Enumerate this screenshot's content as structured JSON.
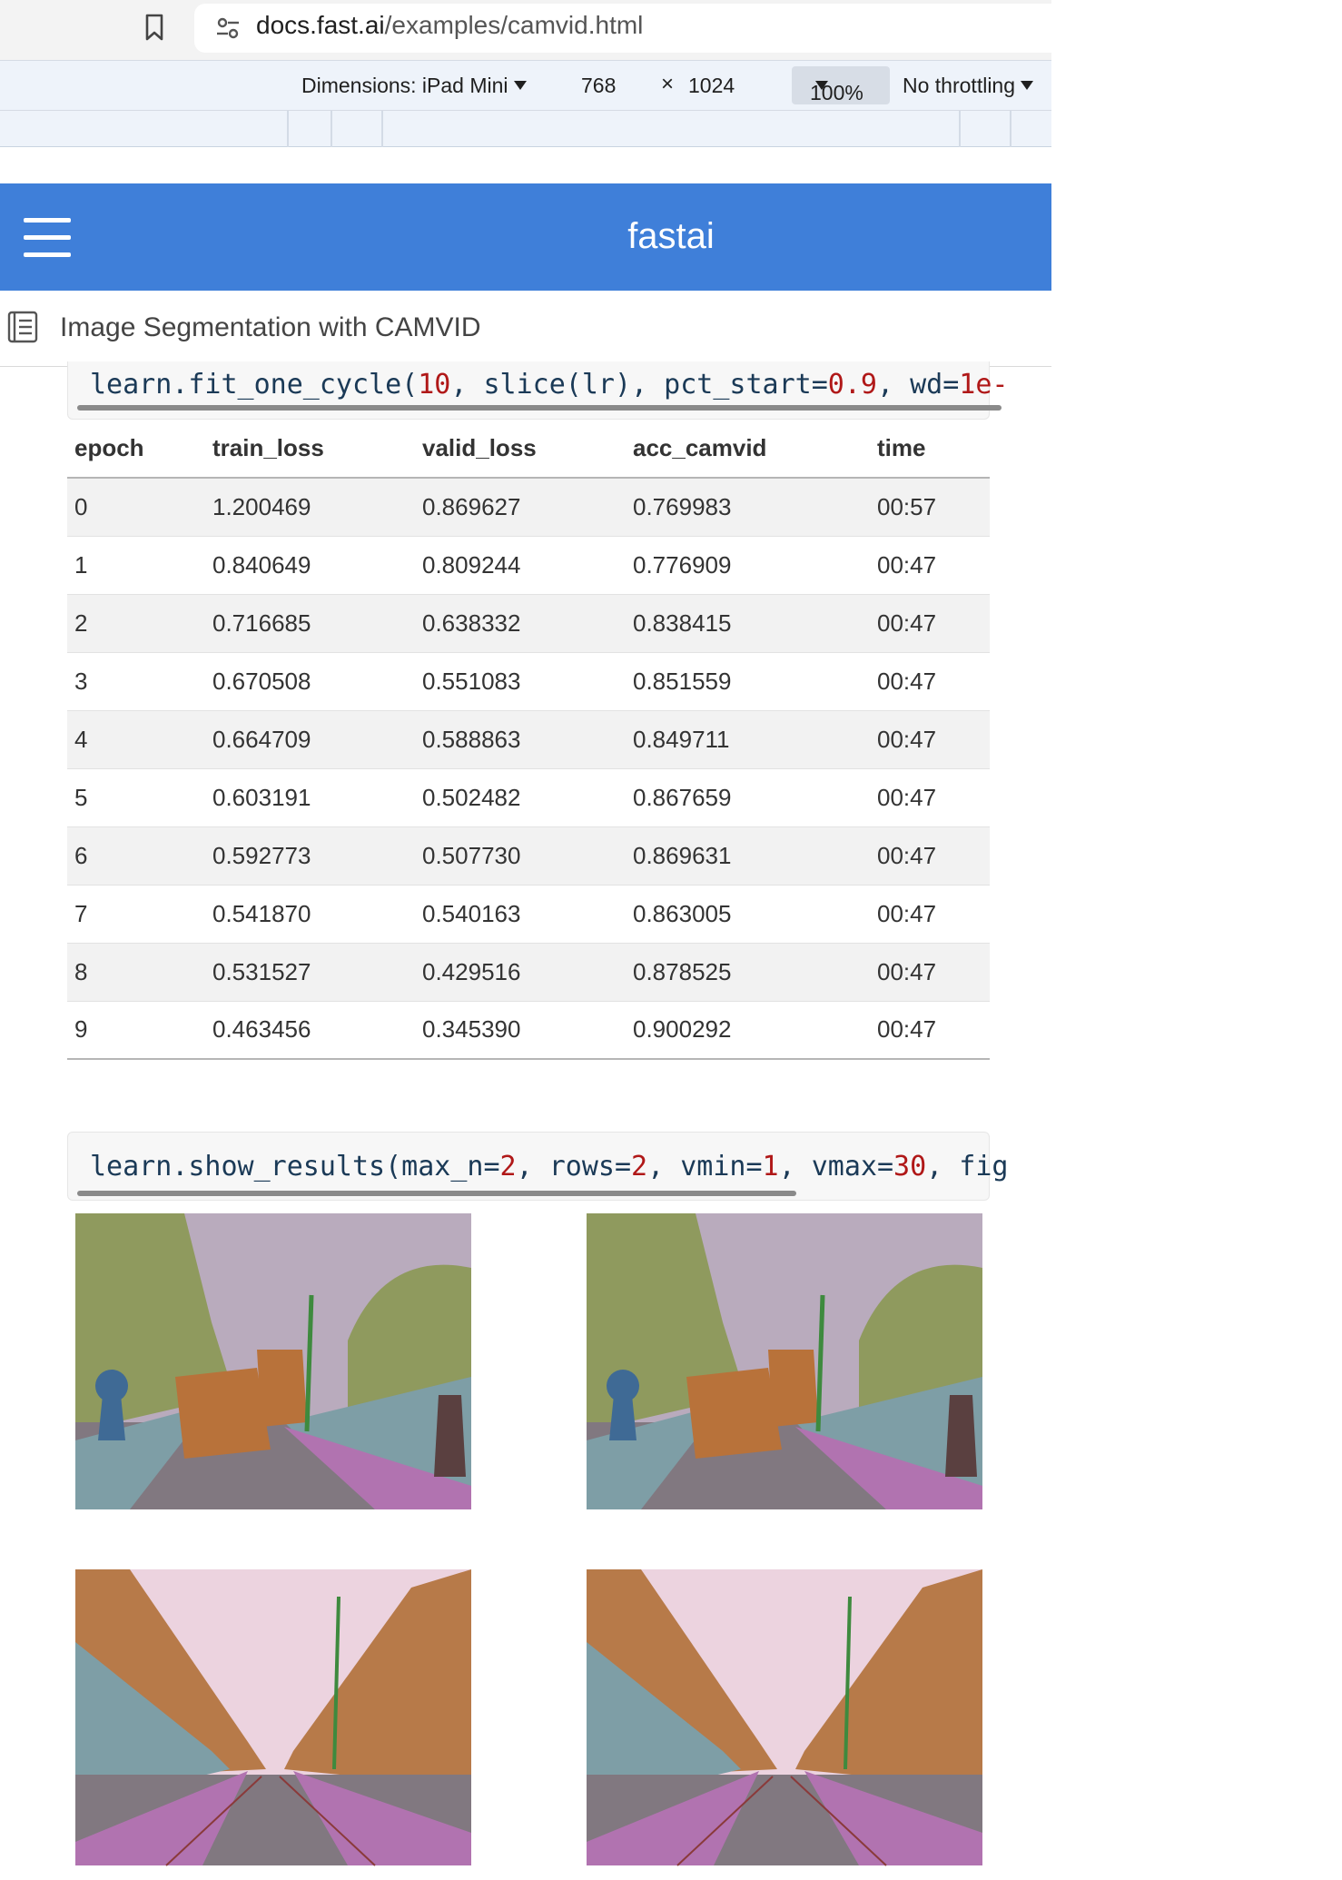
{
  "browser": {
    "url_host": "docs.fast.ai",
    "url_path": "/examples/camvid.html",
    "devtools": {
      "dimensions_label": "Dimensions: iPad Mini",
      "width": "768",
      "times": "×",
      "height": "1024",
      "zoom": "100%",
      "throttling": "No throttling"
    }
  },
  "navbar": {
    "brand": "fastai"
  },
  "subbar": {
    "title": "Image Segmentation with CAMVID"
  },
  "code_cells": [
    {
      "segments": [
        {
          "t": "learn.fit_one_cycle(",
          "k": "txt"
        },
        {
          "t": "10",
          "k": "num"
        },
        {
          "t": ", slice(lr), pct_start=",
          "k": "txt"
        },
        {
          "t": "0.9",
          "k": "num"
        },
        {
          "t": ", wd=",
          "k": "txt"
        },
        {
          "t": "1e-",
          "k": "num"
        }
      ]
    },
    {
      "segments": [
        {
          "t": "learn.show_results(max_n=",
          "k": "txt"
        },
        {
          "t": "2",
          "k": "num"
        },
        {
          "t": ", rows=",
          "k": "txt"
        },
        {
          "t": "2",
          "k": "num"
        },
        {
          "t": ", vmin=",
          "k": "txt"
        },
        {
          "t": "1",
          "k": "num"
        },
        {
          "t": ", vmax=",
          "k": "txt"
        },
        {
          "t": "30",
          "k": "num"
        },
        {
          "t": ", fig",
          "k": "txt"
        }
      ]
    }
  ],
  "results_table": {
    "columns": [
      "epoch",
      "train_loss",
      "valid_loss",
      "acc_camvid",
      "time"
    ],
    "rows": [
      [
        "0",
        "1.200469",
        "0.869627",
        "0.769983",
        "00:57"
      ],
      [
        "1",
        "0.840649",
        "0.809244",
        "0.776909",
        "00:47"
      ],
      [
        "2",
        "0.716685",
        "0.638332",
        "0.838415",
        "00:47"
      ],
      [
        "3",
        "0.670508",
        "0.551083",
        "0.851559",
        "00:47"
      ],
      [
        "4",
        "0.664709",
        "0.588863",
        "0.849711",
        "00:47"
      ],
      [
        "5",
        "0.603191",
        "0.502482",
        "0.867659",
        "00:47"
      ],
      [
        "6",
        "0.592773",
        "0.507730",
        "0.869631",
        "00:47"
      ],
      [
        "7",
        "0.541870",
        "0.540163",
        "0.863005",
        "00:47"
      ],
      [
        "8",
        "0.531527",
        "0.429516",
        "0.878525",
        "00:47"
      ],
      [
        "9",
        "0.463456",
        "0.345390",
        "0.900292",
        "00:47"
      ]
    ]
  },
  "colors": {
    "navbar": "#3f7fd9",
    "code_number": "#b01818",
    "sky_a": "#b9abbd",
    "sky_b": "#ecd3df",
    "tree": "#8f9a5e",
    "road": "#817880",
    "sidewalk": "#b173b0",
    "car": "#b8723a",
    "pavement_blue": "#7e9ea6",
    "building": "#b77a49"
  },
  "images": [
    {
      "name": "result-image-1",
      "variant": "a"
    },
    {
      "name": "result-image-2",
      "variant": "a"
    },
    {
      "name": "result-image-3",
      "variant": "b"
    },
    {
      "name": "result-image-4",
      "variant": "b"
    }
  ]
}
